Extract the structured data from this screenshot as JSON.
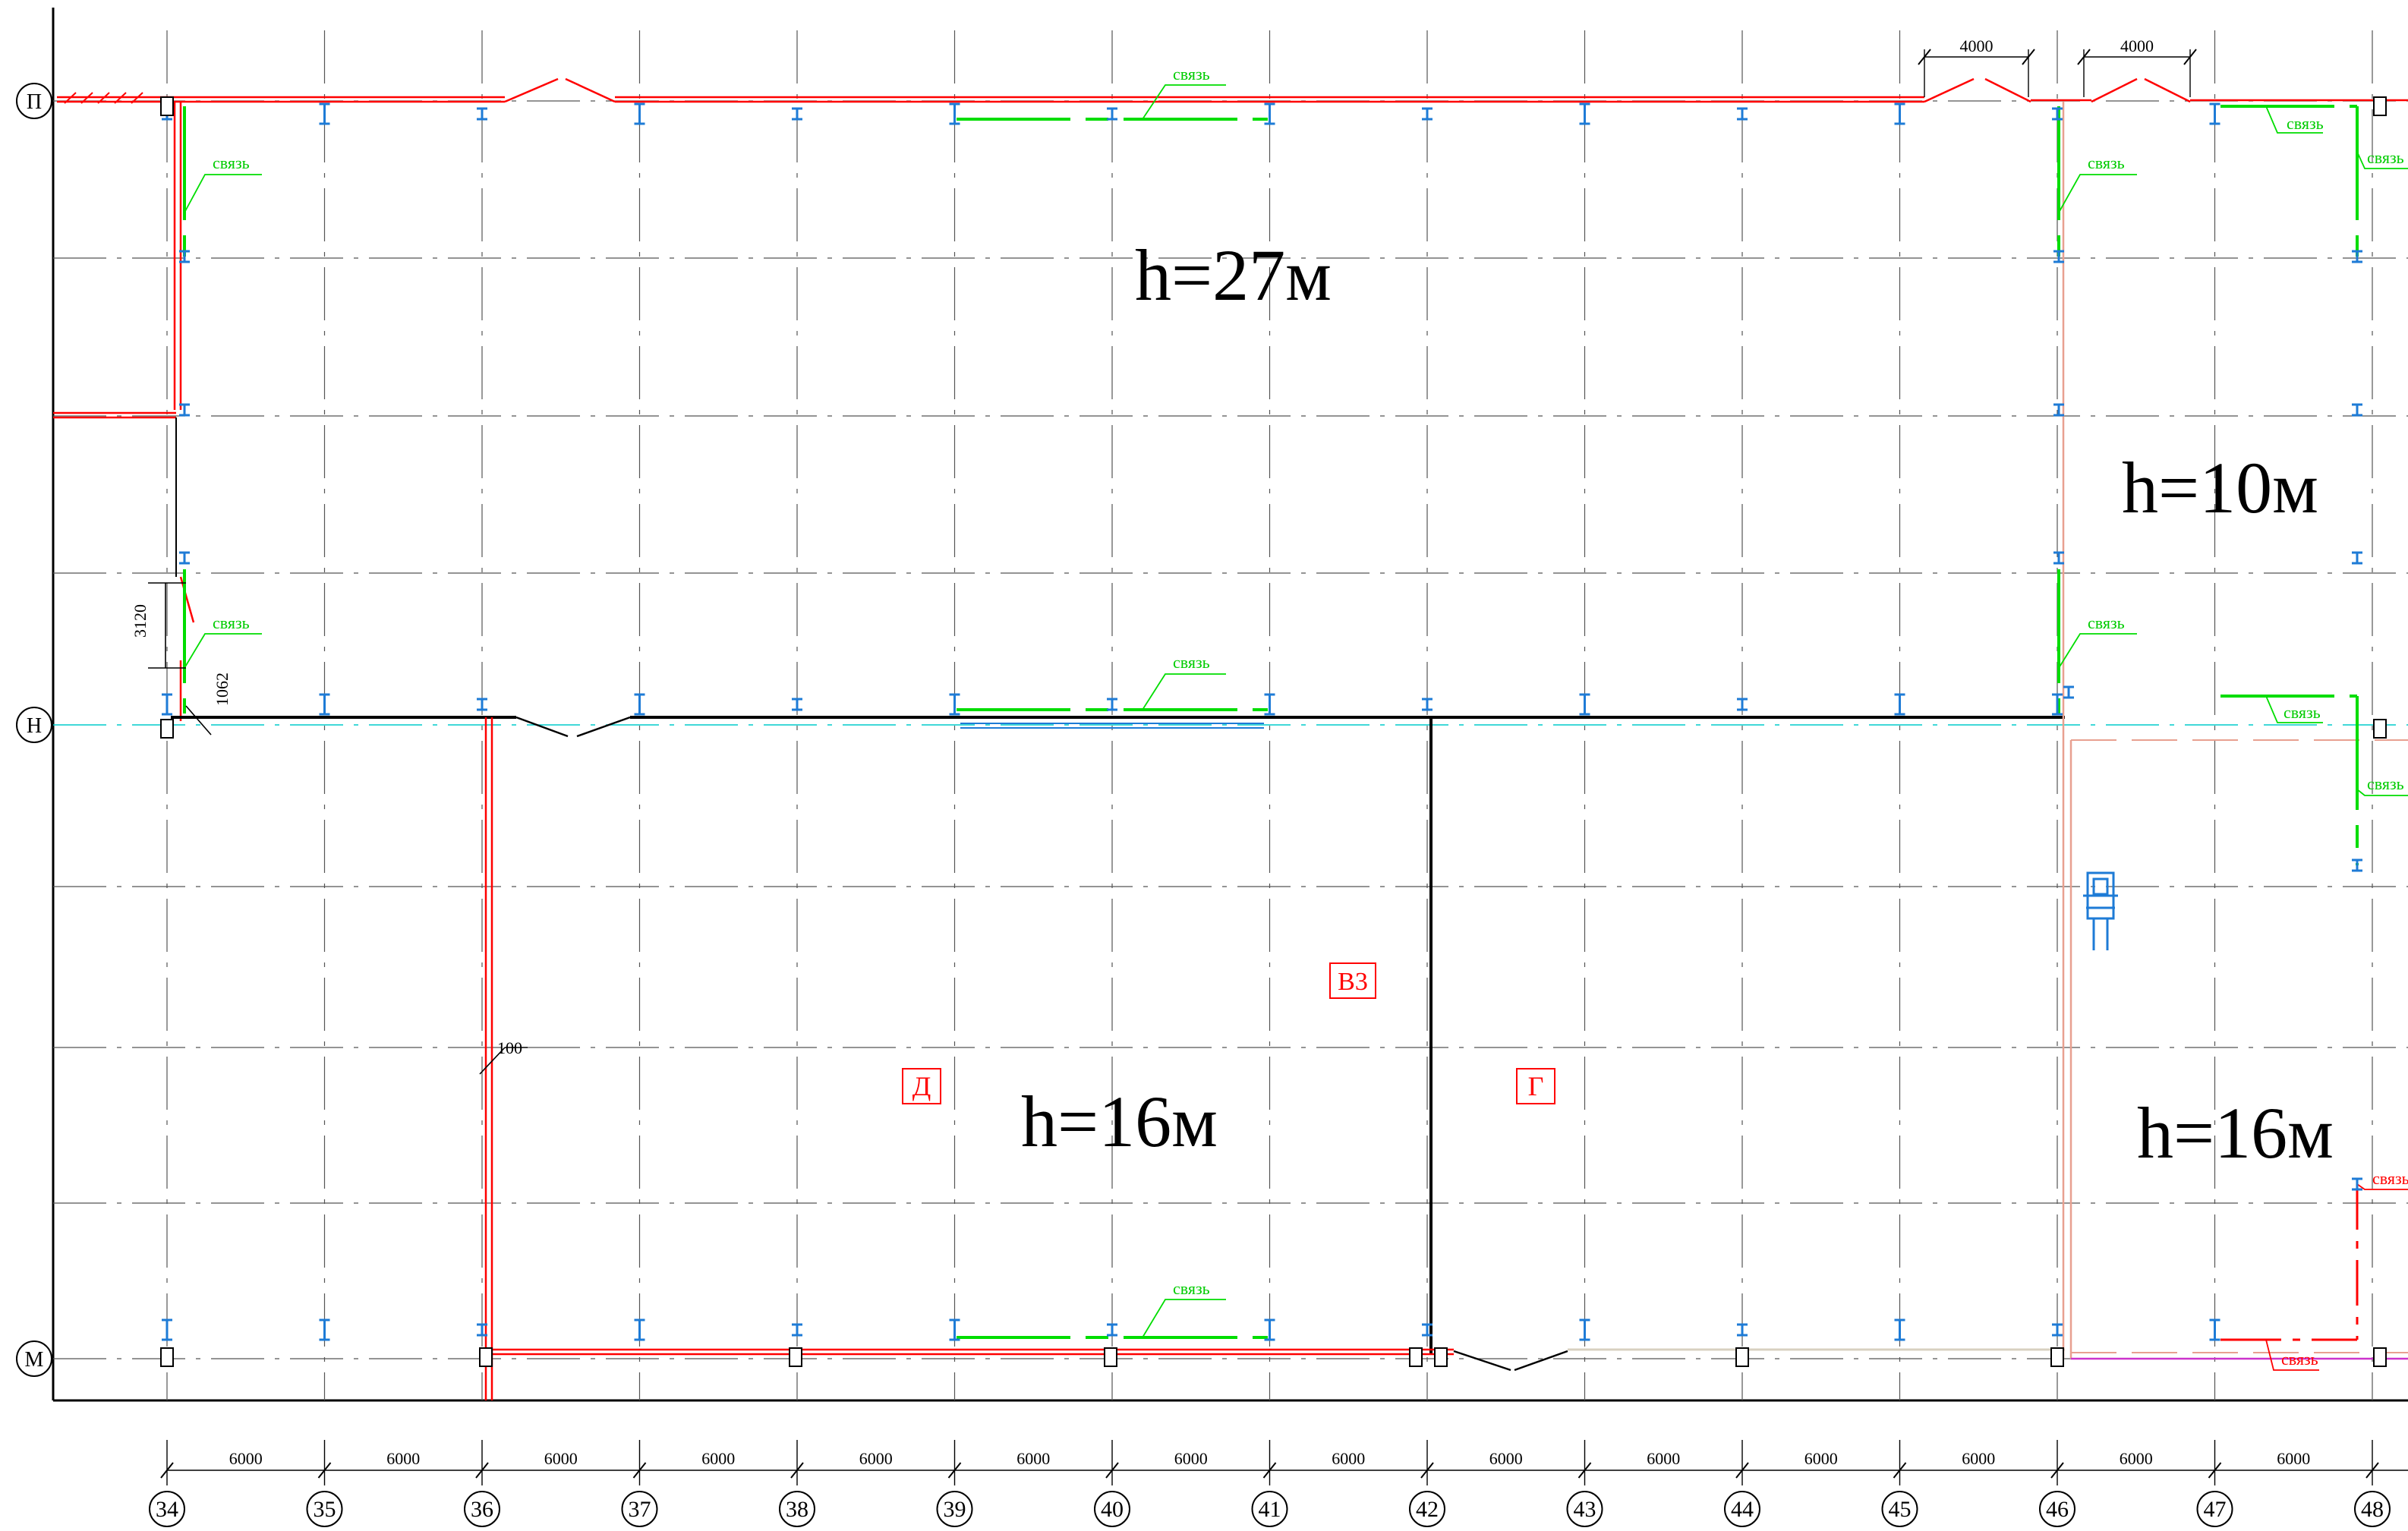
{
  "axes": {
    "rows": [
      {
        "id": "row-p",
        "label": "П"
      },
      {
        "id": "row-n",
        "label": "Н"
      },
      {
        "id": "row-m",
        "label": "М"
      }
    ],
    "columns": [
      "34",
      "35",
      "36",
      "37",
      "38",
      "39",
      "40",
      "41",
      "42",
      "43",
      "44",
      "45",
      "46",
      "47",
      "48"
    ]
  },
  "dimensions": {
    "bay_spacing": "6000",
    "bay_labels": [
      "6000",
      "6000",
      "6000",
      "6000",
      "6000",
      "6000",
      "6000",
      "6000",
      "6000",
      "6000",
      "6000",
      "6000",
      "6000",
      "6000"
    ],
    "top_opening_1": "4000",
    "top_opening_2": "4000",
    "dim_3120": "3120",
    "dim_1062": "1062",
    "dim_100": "100"
  },
  "zones": {
    "h27": "h=27м",
    "h10": "h=10м",
    "h16_left": "h=16м",
    "h16_right": "h=16м",
    "tag_d": "Д",
    "tag_v3": "В3",
    "tag_g": "Г"
  },
  "bracing_label": "связь",
  "colors": {
    "wall_red": "#ff0000",
    "bracing_green": "#00dd00",
    "column_blue": "#1e7bd6",
    "grid_gray": "#555555",
    "wall_black": "#000000",
    "axis_cyan": "#00cccc",
    "wall_light": "#e8a090",
    "magenta": "#cc33cc",
    "tag_red": "#ff0000"
  }
}
